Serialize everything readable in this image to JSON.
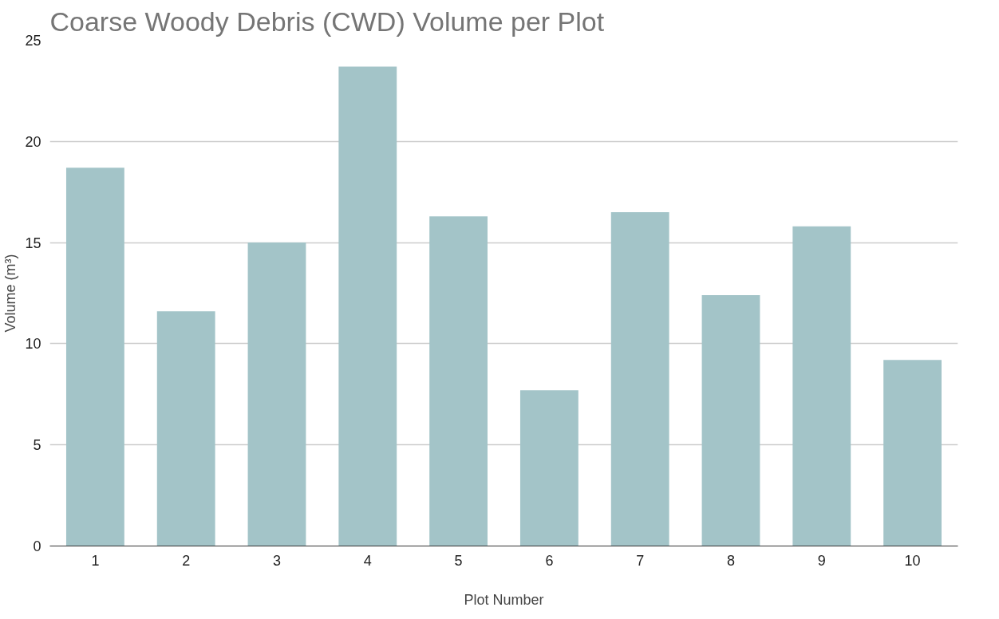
{
  "chart_data": {
    "type": "bar",
    "title": "Coarse Woody Debris (CWD) Volume per Plot",
    "xlabel": "Plot Number",
    "ylabel": "Volume (m³)",
    "categories": [
      "1",
      "2",
      "3",
      "4",
      "5",
      "6",
      "7",
      "8",
      "9",
      "10"
    ],
    "values": [
      18.7,
      11.6,
      15.0,
      23.7,
      16.3,
      7.7,
      16.5,
      12.4,
      15.8,
      9.2
    ],
    "color": "#a3c4c8",
    "ylim": [
      0,
      25
    ],
    "yticks": [
      0,
      5,
      10,
      15,
      20,
      25
    ],
    "grid": "y"
  }
}
